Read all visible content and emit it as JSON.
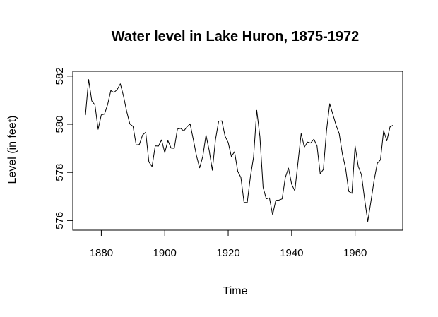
{
  "chart_data": {
    "type": "line",
    "title": "Water level in Lake Huron, 1875-1972",
    "xlabel": "Time",
    "ylabel": "Level (in feet)",
    "xlim": [
      1871,
      1975
    ],
    "ylim": [
      575.6,
      582.2
    ],
    "x_ticks": [
      1880,
      1900,
      1920,
      1940,
      1960
    ],
    "y_ticks": [
      576,
      578,
      580,
      582
    ],
    "grid": false,
    "legend": "none",
    "line_color": "#000000",
    "series": [
      {
        "x": [
          1875,
          1876,
          1877,
          1878,
          1879,
          1880,
          1881,
          1882,
          1883,
          1884,
          1885,
          1886,
          1887,
          1888,
          1889,
          1890,
          1891,
          1892,
          1893,
          1894,
          1895,
          1896,
          1897,
          1898,
          1899,
          1900,
          1901,
          1902,
          1903,
          1904,
          1905,
          1906,
          1907,
          1908,
          1909,
          1910,
          1911,
          1912,
          1913,
          1914,
          1915,
          1916,
          1917,
          1918,
          1919,
          1920,
          1921,
          1922,
          1923,
          1924,
          1925,
          1926,
          1927,
          1928,
          1929,
          1930,
          1931,
          1932,
          1933,
          1934,
          1935,
          1936,
          1937,
          1938,
          1939,
          1940,
          1941,
          1942,
          1943,
          1944,
          1945,
          1946,
          1947,
          1948,
          1949,
          1950,
          1951,
          1952,
          1953,
          1954,
          1955,
          1956,
          1957,
          1958,
          1959,
          1960,
          1961,
          1962,
          1963,
          1964,
          1965,
          1966,
          1967,
          1968,
          1969,
          1970,
          1971,
          1972
        ],
        "values": [
          580.38,
          581.86,
          580.97,
          580.8,
          579.79,
          580.39,
          580.42,
          580.82,
          581.4,
          581.32,
          581.44,
          581.68,
          581.17,
          580.53,
          580.01,
          579.91,
          579.14,
          579.16,
          579.55,
          579.67,
          578.44,
          578.24,
          579.1,
          579.09,
          579.35,
          578.82,
          579.32,
          579.01,
          579.0,
          579.8,
          579.83,
          579.72,
          579.89,
          580.01,
          579.37,
          578.69,
          578.19,
          578.67,
          579.55,
          578.92,
          578.09,
          579.37,
          580.13,
          580.14,
          579.51,
          579.24,
          578.66,
          578.86,
          578.05,
          577.79,
          576.75,
          576.75,
          577.82,
          578.64,
          580.58,
          579.48,
          577.38,
          576.9,
          576.94,
          576.24,
          576.84,
          576.85,
          576.9,
          577.79,
          578.18,
          577.51,
          577.23,
          578.42,
          579.61,
          579.05,
          579.26,
          579.22,
          579.38,
          579.1,
          577.95,
          578.12,
          579.75,
          580.85,
          580.41,
          579.96,
          579.61,
          578.76,
          578.18,
          577.21,
          577.13,
          579.1,
          578.25,
          577.91,
          576.89,
          575.96,
          576.8,
          577.68,
          578.38,
          578.52,
          579.74,
          579.31,
          579.89,
          579.96
        ]
      }
    ]
  }
}
